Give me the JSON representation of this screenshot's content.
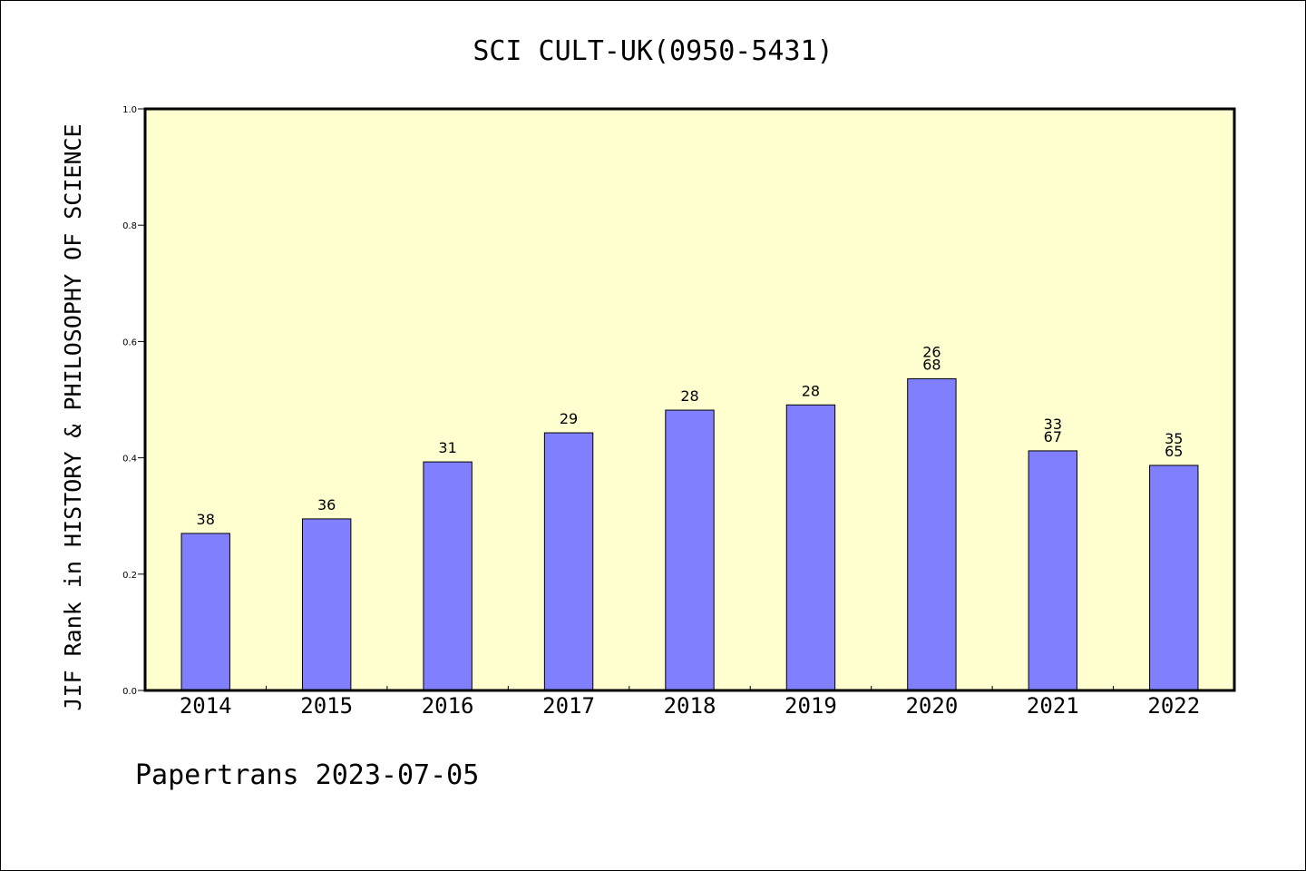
{
  "footer": "Papertrans 2023-07-05",
  "colors": {
    "plot_bg": "#ffffd0",
    "bar": "#8080ff",
    "axis": "#000000"
  },
  "chart_data": {
    "type": "bar",
    "title": "SCI CULT-UK(0950-5431)",
    "xlabel": "",
    "ylabel": "JIF Rank in HISTORY & PHILOSOPHY OF SCIENCE",
    "ylim": [
      0,
      1.0
    ],
    "yticks": [
      "0.0",
      "0.2",
      "0.4",
      "0.6",
      "0.8",
      "1.0"
    ],
    "grid": false,
    "categories": [
      "2014",
      "2015",
      "2016",
      "2017",
      "2018",
      "2019",
      "2020",
      "2021",
      "2022"
    ],
    "values": [
      0.27,
      0.295,
      0.393,
      0.443,
      0.482,
      0.491,
      0.536,
      0.412,
      0.387
    ],
    "bar_labels": [
      [
        "38"
      ],
      [
        "36"
      ],
      [
        "31"
      ],
      [
        "29"
      ],
      [
        "28"
      ],
      [
        "28"
      ],
      [
        "26",
        "68"
      ],
      [
        "33",
        "67"
      ],
      [
        "35",
        "65"
      ]
    ]
  }
}
